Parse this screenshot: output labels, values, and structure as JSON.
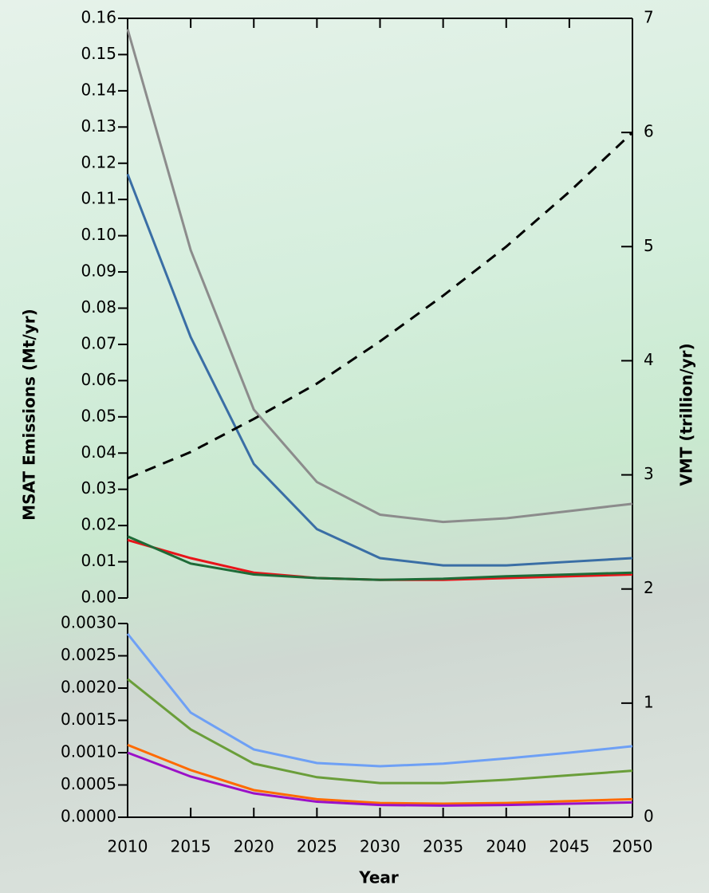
{
  "chart_data": {
    "type": "line",
    "xlabel": "Year",
    "ylabel": "MSAT Emissions (Mt/yr)",
    "y2label": "VMT (trillion/yr)",
    "x": [
      2010,
      2015,
      2020,
      2025,
      2030,
      2035,
      2040,
      2045,
      2050
    ],
    "xlim": [
      2010,
      2050
    ],
    "xticks": [
      2010,
      2015,
      2020,
      2025,
      2030,
      2035,
      2040,
      2045,
      2050
    ],
    "y2lim": [
      0,
      7
    ],
    "y2ticks": [
      0,
      1,
      2,
      3,
      4,
      5,
      6,
      7
    ],
    "series": [
      {
        "color": "#000000",
        "dashed": true,
        "axis": "y2",
        "values": [
          2.97,
          3.2,
          3.49,
          3.8,
          4.17,
          4.57,
          5.0,
          5.48,
          6.0
        ]
      }
    ],
    "panels": [
      {
        "ylim": [
          0,
          0.16
        ],
        "yticks": [
          {
            "value": 0,
            "label": "0.00"
          },
          0.01,
          0.02,
          0.03,
          0.04,
          0.05,
          0.06,
          0.07,
          0.08,
          0.09,
          {
            "value": 0.1,
            "label": "0.10"
          },
          0.11,
          0.12,
          0.13,
          0.14,
          0.15,
          0.16
        ],
        "series": [
          {
            "color": "#8c8c8c",
            "values": [
              0.157,
              0.096,
              0.052,
              0.032,
              0.023,
              0.021,
              0.022,
              0.024,
              0.026
            ]
          },
          {
            "color": "#3a6ea5",
            "values": [
              0.117,
              0.072,
              0.037,
              0.019,
              0.011,
              0.009,
              0.009,
              0.01,
              0.011
            ]
          },
          {
            "color": "#e8141a",
            "values": [
              0.016,
              0.011,
              0.007,
              0.0055,
              0.005,
              0.005,
              0.0055,
              0.006,
              0.0065
            ]
          },
          {
            "color": "#1e6b37",
            "values": [
              0.017,
              0.0095,
              0.0065,
              0.0055,
              0.005,
              0.0053,
              0.006,
              0.0065,
              0.007
            ]
          }
        ]
      },
      {
        "ylim": [
          0,
          0.003
        ],
        "yticks": [
          {
            "value": 0,
            "label": "0.0000"
          },
          0.0005,
          {
            "value": 0.001,
            "label": "0.0010"
          },
          0.0015,
          {
            "value": 0.002,
            "label": "0.0020"
          },
          0.0025,
          {
            "value": 0.003,
            "label": "0.0030"
          }
        ],
        "series": [
          {
            "color": "#6ea0f5",
            "values": [
              0.00284,
              0.00162,
              0.00105,
              0.00084,
              0.00079,
              0.00083,
              0.00091,
              0.001,
              0.0011
            ]
          },
          {
            "color": "#6a9e3a",
            "values": [
              0.00214,
              0.00136,
              0.00083,
              0.00062,
              0.00053,
              0.00053,
              0.00058,
              0.00065,
              0.00072
            ]
          },
          {
            "color": "#ff6a00",
            "values": [
              0.00112,
              0.00073,
              0.00042,
              0.00028,
              0.00022,
              0.00021,
              0.00022,
              0.00025,
              0.00028
            ]
          },
          {
            "color": "#9b10c8",
            "values": [
              0.001,
              0.00063,
              0.00037,
              0.00024,
              0.00019,
              0.00018,
              0.00019,
              0.00021,
              0.00023
            ]
          }
        ]
      }
    ]
  }
}
